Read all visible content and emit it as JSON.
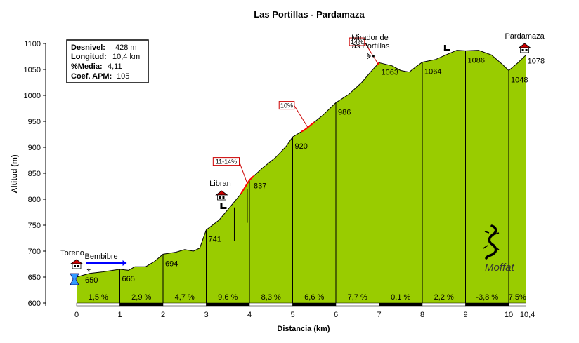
{
  "chart_data": {
    "type": "area",
    "title": "Las Portillas - Pardamaza",
    "xlabel": "Distancia (km)",
    "ylabel": "Altitud (m)",
    "xlim": [
      0,
      10.4
    ],
    "ylim": [
      600,
      1100
    ],
    "x_ticks": [
      "0",
      "1",
      "2",
      "3",
      "4",
      "5",
      "6",
      "7",
      "8",
      "9",
      "10",
      "10,4"
    ],
    "y_ticks": [
      "600",
      "650",
      "700",
      "750",
      "800",
      "850",
      "900",
      "950",
      "1000",
      "1050",
      "1100"
    ],
    "profile": [
      [
        0,
        650
      ],
      [
        0.3,
        657
      ],
      [
        0.6,
        660
      ],
      [
        1.0,
        665
      ],
      [
        1.2,
        663
      ],
      [
        1.35,
        670
      ],
      [
        1.6,
        670
      ],
      [
        1.8,
        680
      ],
      [
        2.0,
        694
      ],
      [
        2.3,
        698
      ],
      [
        2.5,
        703
      ],
      [
        2.7,
        700
      ],
      [
        2.85,
        706
      ],
      [
        3.0,
        741
      ],
      [
        3.3,
        760
      ],
      [
        3.6,
        790
      ],
      [
        3.8,
        810
      ],
      [
        4.0,
        837
      ],
      [
        4.3,
        860
      ],
      [
        4.6,
        880
      ],
      [
        4.85,
        902
      ],
      [
        5.0,
        920
      ],
      [
        5.3,
        935
      ],
      [
        5.7,
        962
      ],
      [
        6.0,
        986
      ],
      [
        6.3,
        1002
      ],
      [
        6.6,
        1025
      ],
      [
        6.8,
        1045
      ],
      [
        7.0,
        1063
      ],
      [
        7.3,
        1057
      ],
      [
        7.5,
        1048
      ],
      [
        7.7,
        1045
      ],
      [
        7.85,
        1055
      ],
      [
        8.0,
        1064
      ],
      [
        8.3,
        1069
      ],
      [
        8.6,
        1080
      ],
      [
        8.8,
        1087
      ],
      [
        9.0,
        1086
      ],
      [
        9.3,
        1087
      ],
      [
        9.6,
        1078
      ],
      [
        9.85,
        1060
      ],
      [
        10.0,
        1048
      ],
      [
        10.2,
        1062
      ],
      [
        10.4,
        1078
      ]
    ],
    "point_labels": [
      {
        "x": 0,
        "y": 650,
        "label": "650"
      },
      {
        "x": 1,
        "y": 665,
        "label": "665"
      },
      {
        "x": 2,
        "y": 694,
        "label": "694"
      },
      {
        "x": 3,
        "y": 741,
        "label": "741"
      },
      {
        "x": 4,
        "y": 837,
        "label": "837"
      },
      {
        "x": 5,
        "y": 920,
        "label": "920"
      },
      {
        "x": 6,
        "y": 986,
        "label": "986"
      },
      {
        "x": 7,
        "y": 1063,
        "label": "1063"
      },
      {
        "x": 8,
        "y": 1064,
        "label": "1064"
      },
      {
        "x": 9,
        "y": 1086,
        "label": "1086"
      },
      {
        "x": 10,
        "y": 1048,
        "label": "1048"
      },
      {
        "x": 10.4,
        "y": 1078,
        "label": "1078"
      }
    ],
    "segment_gradients": [
      {
        "from": 0,
        "to": 1,
        "label": "1,5 %"
      },
      {
        "from": 1,
        "to": 2,
        "label": "2,9 %"
      },
      {
        "from": 2,
        "to": 3,
        "label": "4,7 %"
      },
      {
        "from": 3,
        "to": 4,
        "label": "9,6 %"
      },
      {
        "from": 4,
        "to": 5,
        "label": "8,3 %"
      },
      {
        "from": 5,
        "to": 6,
        "label": "6,6 %"
      },
      {
        "from": 6,
        "to": 7,
        "label": "7,7 %"
      },
      {
        "from": 7,
        "to": 8,
        "label": "0,1 %"
      },
      {
        "from": 8,
        "to": 9,
        "label": "2,2 %"
      },
      {
        "from": 9,
        "to": 10,
        "label": "-3,8 %"
      },
      {
        "from": 10,
        "to": 10.4,
        "label": "7,5%"
      }
    ],
    "max_gradient_markers": [
      {
        "label": "11-14%",
        "x_from": 3.8,
        "x_to": 4.1
      },
      {
        "label": "10%",
        "x_from": 5.2,
        "x_to": 5.5
      },
      {
        "label": "14%",
        "x_from": 6.95,
        "x_to": 7.0
      }
    ],
    "places": [
      {
        "name": "Toreno",
        "x": 0
      },
      {
        "name": "Libran",
        "x": 3.65
      },
      {
        "name": "Mirador de las Portillas",
        "x": 6.95
      },
      {
        "name": "Pardamaza",
        "x": 10.4
      }
    ],
    "river": {
      "name": "Bembibre",
      "x_from": 0.25,
      "x_to": 1.0
    },
    "stats": [
      {
        "key": "Desnivel:",
        "value": "428 m"
      },
      {
        "key": "Longitud:",
        "value": "10,4 km"
      },
      {
        "key": "%Media:",
        "value": "4,11"
      },
      {
        "key": "Coef. APM:",
        "value": "105"
      }
    ],
    "signature": "Moffat",
    "colors": {
      "fill": "#99cc00",
      "line": "#000000",
      "steep": "#ff0000",
      "river": "#0000ff"
    },
    "grid": false
  }
}
